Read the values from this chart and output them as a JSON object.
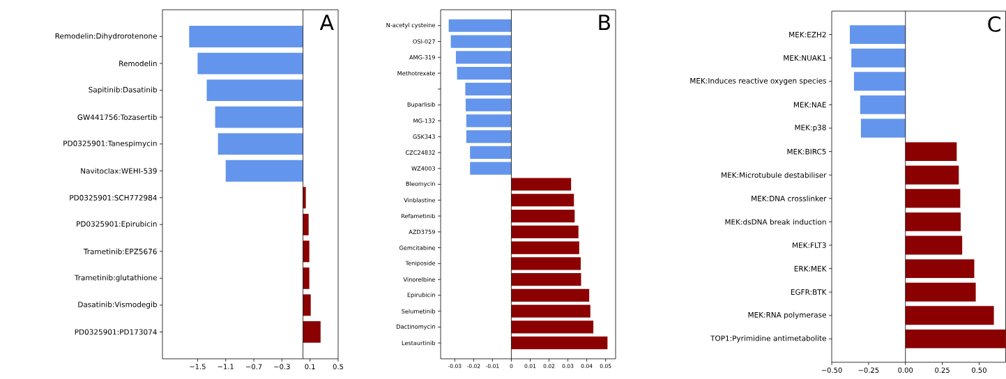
{
  "chart_data": [
    {
      "type": "bar",
      "orientation": "horizontal",
      "categories": [
        "Remodelin:Dihydrorotenone",
        "Remodelin",
        "Sapitinib:Dasatinib",
        "GW441756:Tozasertib",
        "PD0325901:Tanespimycin",
        "Navitoclax:WEHI-539",
        "PD0325901:SCH772984",
        "PD0325901:Epirubicin",
        "Trametinib:EPZ5676",
        "Trametinib:glutathione",
        "Dasatinib:Vismodegib",
        "PD0325901:PD173074"
      ],
      "values": [
        -1.62,
        -1.5,
        -1.37,
        -1.25,
        -1.21,
        -1.1,
        0.04,
        0.08,
        0.09,
        0.09,
        0.11,
        0.25
      ],
      "colors": [
        "#6495ed",
        "#6495ed",
        "#6495ed",
        "#6495ed",
        "#6495ed",
        "#6495ed",
        "#8b0000",
        "#8b0000",
        "#8b0000",
        "#8b0000",
        "#8b0000",
        "#8b0000"
      ],
      "xlim": [
        -2.0,
        0.5
      ],
      "xticks": [
        {
          "value": -1.5,
          "label": "−1.5"
        },
        {
          "value": -1.1,
          "label": "−1.1"
        },
        {
          "value": -0.7,
          "label": "−0.7"
        },
        {
          "value": -0.3,
          "label": "−0.3"
        },
        {
          "value": 0.1,
          "label": "0.1"
        },
        {
          "value": 0.5,
          "label": "0.5"
        }
      ],
      "ref_lines": [
        {
          "axis": "x",
          "value": 0,
          "color": "#000000"
        }
      ],
      "annotations": [
        "A"
      ]
    },
    {
      "type": "bar",
      "orientation": "horizontal",
      "categories": [
        "N-acetyl cysteine",
        "OSI-027",
        "AMG-319",
        "Methotrexate",
        null,
        "Buparlisib",
        "MG-132",
        "GSK343",
        "CZC24832",
        "WZ4003",
        "Bleomycin",
        "Vinblastine",
        "Refametinib",
        "AZD3759",
        "Gemcitabine",
        "Teniposide",
        "Vinorelbine",
        "Epirubicin",
        "Selumetinib",
        "Dactinomycin",
        "Lestaurtinib"
      ],
      "values": [
        -0.0332,
        -0.0321,
        -0.0294,
        -0.0288,
        -0.0244,
        -0.0242,
        -0.0239,
        -0.0239,
        -0.0219,
        -0.0219,
        0.0317,
        0.0332,
        0.0336,
        0.0356,
        0.036,
        0.0368,
        0.037,
        0.0413,
        0.0419,
        0.0435,
        0.051
      ],
      "colors": [
        "#6495ed",
        "#6495ed",
        "#6495ed",
        "#6495ed",
        "#6495ed",
        "#6495ed",
        "#6495ed",
        "#6495ed",
        "#6495ed",
        "#6495ed",
        "#8b0000",
        "#8b0000",
        "#8b0000",
        "#8b0000",
        "#8b0000",
        "#8b0000",
        "#8b0000",
        "#8b0000",
        "#8b0000",
        "#8b0000",
        "#8b0000"
      ],
      "xlim": [
        -0.0375,
        0.0553
      ],
      "xticks": [
        {
          "value": -0.03,
          "label": "-0.03"
        },
        {
          "value": -0.02,
          "label": "-0.02"
        },
        {
          "value": -0.01,
          "label": "-0.01"
        },
        {
          "value": 0,
          "label": "0"
        },
        {
          "value": 0.01,
          "label": "0.01"
        },
        {
          "value": 0.02,
          "label": "0.02"
        },
        {
          "value": 0.03,
          "label": "0.03"
        },
        {
          "value": 0.04,
          "label": "0.04"
        },
        {
          "value": 0.05,
          "label": "0.05"
        }
      ],
      "ref_lines": [
        {
          "axis": "x",
          "value": 0,
          "color": "#000000"
        }
      ],
      "annotations": [
        "B"
      ]
    },
    {
      "type": "bar",
      "orientation": "horizontal",
      "categories": [
        "MEK:EZH2",
        "MEK:NUAK1",
        "MEK:Induces reactive oxygen species",
        "MEK:NAE",
        "MEK:p38",
        "MEK:BIRC5",
        "MEK:Microtubule destabiliser",
        "MEK:DNA crosslinker",
        "MEK:dsDNA break induction",
        "MEK:FLT3",
        "ERK:MEK",
        "EGFR:BTK",
        "MEK:RNA polymerase",
        "TOP1:Pyrimidine antimetabolite"
      ],
      "values": [
        -0.377,
        -0.367,
        -0.349,
        -0.307,
        -0.302,
        0.348,
        0.362,
        0.372,
        0.375,
        0.385,
        0.467,
        0.477,
        0.6,
        0.68
      ],
      "colors": [
        "#6495ed",
        "#6495ed",
        "#6495ed",
        "#6495ed",
        "#6495ed",
        "#8b0000",
        "#8b0000",
        "#8b0000",
        "#8b0000",
        "#8b0000",
        "#8b0000",
        "#8b0000",
        "#8b0000",
        "#8b0000"
      ],
      "xlim": [
        -0.5,
        0.68
      ],
      "xticks": [
        {
          "value": -0.5,
          "label": "−0.50"
        },
        {
          "value": -0.25,
          "label": "−0.25"
        },
        {
          "value": 0.0,
          "label": "0.00"
        },
        {
          "value": 0.25,
          "label": "0.25"
        },
        {
          "value": 0.5,
          "label": "0.50"
        }
      ],
      "ref_lines": [
        {
          "axis": "x",
          "value": 0,
          "color": "#000000"
        }
      ],
      "annotations": [
        "C"
      ]
    }
  ]
}
